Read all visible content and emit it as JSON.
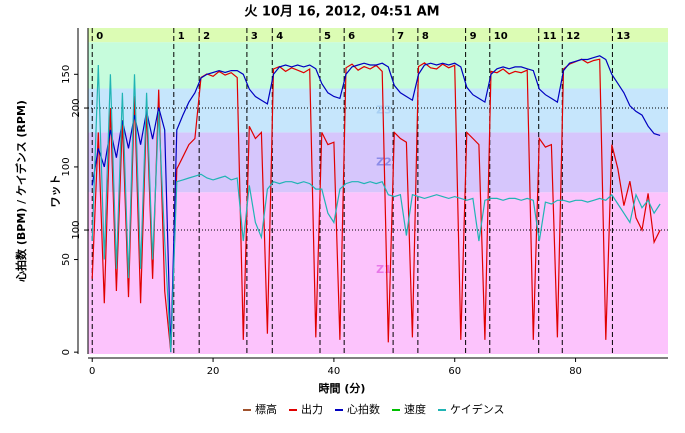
{
  "chart_data": {
    "type": "line",
    "title": "火 10月 16, 2012, 04:51 AM",
    "x_label": "時間 (分)",
    "y_label": "心拍数 (BPM) / ケイデンス (RPM)",
    "y2_label": "ワット",
    "xlim": [
      -0.7,
      95.3
    ],
    "xticks": [
      0,
      20,
      40,
      60,
      80
    ],
    "ylim": [
      -1,
      175
    ],
    "yticks": [
      0,
      50,
      100,
      150
    ],
    "y2lim": [
      -1.6,
      265.6
    ],
    "y2ticks": [
      100,
      200
    ],
    "grid": true,
    "zones": [
      {
        "label": "Z1",
        "from": 0,
        "to": 131,
        "color": "#fcc3fc",
        "label_color": "#e878e8"
      },
      {
        "label": "Z2",
        "from": 131,
        "to": 180,
        "color": "#d6c6fc",
        "label_color": "#8c8ce8"
      },
      {
        "label": "Z3",
        "from": 180,
        "to": 216,
        "color": "#c6e6fc",
        "label_color": "#a8d0f4"
      },
      {
        "label": null,
        "from": 216,
        "to": 254,
        "color": "#c6fcdc",
        "label_color": "#a0e0b0"
      },
      {
        "label": null,
        "from": 254,
        "to": 270,
        "color": "#dcfcb4",
        "label_color": "#b0e090"
      }
    ],
    "laps": {
      "labels": [
        0,
        1,
        2,
        3,
        4,
        5,
        6,
        7,
        8,
        9,
        10,
        11,
        12,
        13
      ],
      "x": [
        0,
        13.5,
        17.7,
        25.6,
        29.8,
        37.7,
        41.7,
        49.8,
        53.9,
        61.8,
        65.8,
        73.9,
        77.8,
        86.1
      ]
    },
    "x": [
      0,
      1,
      2,
      3,
      4,
      5,
      6,
      7,
      8,
      9,
      10,
      11,
      12,
      13,
      14,
      15,
      16,
      17,
      18,
      19,
      20,
      21,
      22,
      23,
      24,
      25,
      26,
      27,
      28,
      29,
      30,
      31,
      32,
      33,
      34,
      35,
      36,
      37,
      38,
      39,
      40,
      41,
      42,
      43,
      44,
      45,
      46,
      47,
      48,
      49,
      50,
      51,
      52,
      53,
      54,
      55,
      56,
      57,
      58,
      59,
      60,
      61,
      62,
      63,
      64,
      65,
      66,
      67,
      68,
      69,
      70,
      71,
      72,
      73,
      74,
      75,
      76,
      77,
      78,
      79,
      80,
      81,
      82,
      83,
      84,
      85,
      86,
      87,
      88,
      89,
      90,
      91,
      92,
      93,
      94
    ],
    "series": [
      {
        "name": "標高",
        "color": "#a0522d",
        "values": [
          null,
          null,
          null,
          null,
          null,
          null,
          null,
          null,
          null,
          null,
          null,
          null,
          null,
          null,
          null,
          null,
          null,
          null,
          null,
          null,
          null,
          null,
          null,
          null,
          null,
          null,
          null,
          null,
          null,
          null,
          null,
          null,
          null,
          null,
          null,
          null,
          null,
          null,
          null,
          null,
          null,
          null,
          null,
          null,
          null,
          null,
          null,
          null,
          null,
          null,
          null,
          null,
          null,
          null,
          null,
          null,
          null,
          null,
          null,
          null,
          null,
          null,
          null,
          null,
          null,
          null,
          null,
          null,
          null,
          null,
          null,
          null,
          null,
          null,
          null,
          null,
          null,
          null,
          null,
          null,
          null,
          null,
          null,
          null,
          null,
          null,
          null,
          null,
          null,
          null,
          null,
          null,
          null,
          null,
          null
        ]
      },
      {
        "name": "出力",
        "color": "#e00000",
        "axis": "y2",
        "values": [
          60,
          180,
          40,
          200,
          50,
          190,
          45,
          210,
          40,
          200,
          60,
          215,
          50,
          0,
          150,
          160,
          170,
          175,
          225,
          228,
          226,
          230,
          227,
          229,
          225,
          10,
          185,
          175,
          180,
          15,
          232,
          234,
          230,
          233,
          231,
          229,
          232,
          12,
          180,
          170,
          172,
          10,
          233,
          236,
          231,
          234,
          232,
          235,
          230,
          8,
          180,
          175,
          172,
          12,
          234,
          237,
          233,
          232,
          236,
          233,
          235,
          10,
          180,
          175,
          170,
          10,
          230,
          229,
          232,
          228,
          230,
          229,
          231,
          10,
          175,
          168,
          170,
          12,
          232,
          236,
          238,
          240,
          237,
          239,
          240,
          10,
          170,
          150,
          120,
          140,
          110,
          100,
          130,
          90,
          100
        ]
      },
      {
        "name": "心拍数",
        "color": "#0000c0",
        "values": [
          90,
          110,
          100,
          120,
          105,
          125,
          110,
          128,
          112,
          130,
          115,
          132,
          120,
          0,
          120,
          128,
          135,
          140,
          148,
          150,
          151,
          152,
          151,
          152,
          152,
          150,
          142,
          138,
          136,
          134,
          150,
          154,
          155,
          154,
          155,
          154,
          155,
          153,
          145,
          140,
          138,
          137,
          150,
          154,
          155,
          156,
          155,
          155,
          156,
          154,
          144,
          140,
          138,
          136,
          150,
          155,
          156,
          155,
          156,
          155,
          156,
          154,
          143,
          139,
          137,
          135,
          150,
          153,
          154,
          153,
          154,
          154,
          153,
          152,
          142,
          139,
          137,
          135,
          152,
          156,
          157,
          158,
          158,
          159,
          160,
          158,
          150,
          145,
          140,
          133,
          130,
          128,
          122,
          118,
          117
        ]
      },
      {
        "name": "速度",
        "color": "#00c000",
        "values": [
          null,
          null,
          null,
          null,
          null,
          null,
          null,
          null,
          null,
          null,
          null,
          null,
          null,
          null,
          null,
          null,
          null,
          null,
          null,
          null,
          null,
          null,
          null,
          null,
          null,
          null,
          null,
          null,
          null,
          null,
          null,
          null,
          null,
          null,
          null,
          null,
          null,
          null,
          null,
          null,
          null,
          null,
          null,
          null,
          null,
          null,
          null,
          null,
          null,
          null,
          null,
          null,
          null,
          null,
          null,
          null,
          null,
          null,
          null,
          null,
          null,
          null,
          null,
          null,
          null,
          null,
          null,
          null,
          null,
          null,
          null,
          null,
          null,
          null,
          null,
          null,
          null,
          null,
          null,
          null,
          null,
          null,
          null,
          null,
          null,
          null,
          null,
          null,
          null,
          null,
          null,
          null,
          null,
          null,
          null
        ]
      },
      {
        "name": "ケイデンス",
        "color": "#20b4b4",
        "values": [
          60,
          155,
          50,
          150,
          45,
          140,
          40,
          150,
          45,
          140,
          50,
          130,
          60,
          0,
          92,
          93,
          94,
          95,
          96,
          94,
          93,
          94,
          95,
          93,
          94,
          60,
          90,
          70,
          62,
          88,
          92,
          91,
          92,
          92,
          91,
          92,
          91,
          88,
          88,
          75,
          70,
          88,
          91,
          92,
          92,
          91,
          92,
          91,
          92,
          85,
          84,
          85,
          63,
          85,
          84,
          83,
          84,
          85,
          84,
          83,
          84,
          83,
          82,
          83,
          60,
          82,
          83,
          83,
          82,
          83,
          83,
          82,
          83,
          82,
          60,
          81,
          80,
          82,
          82,
          81,
          82,
          82,
          81,
          82,
          83,
          82,
          85,
          80,
          75,
          70,
          85,
          78,
          82,
          75,
          80
        ]
      }
    ]
  }
}
